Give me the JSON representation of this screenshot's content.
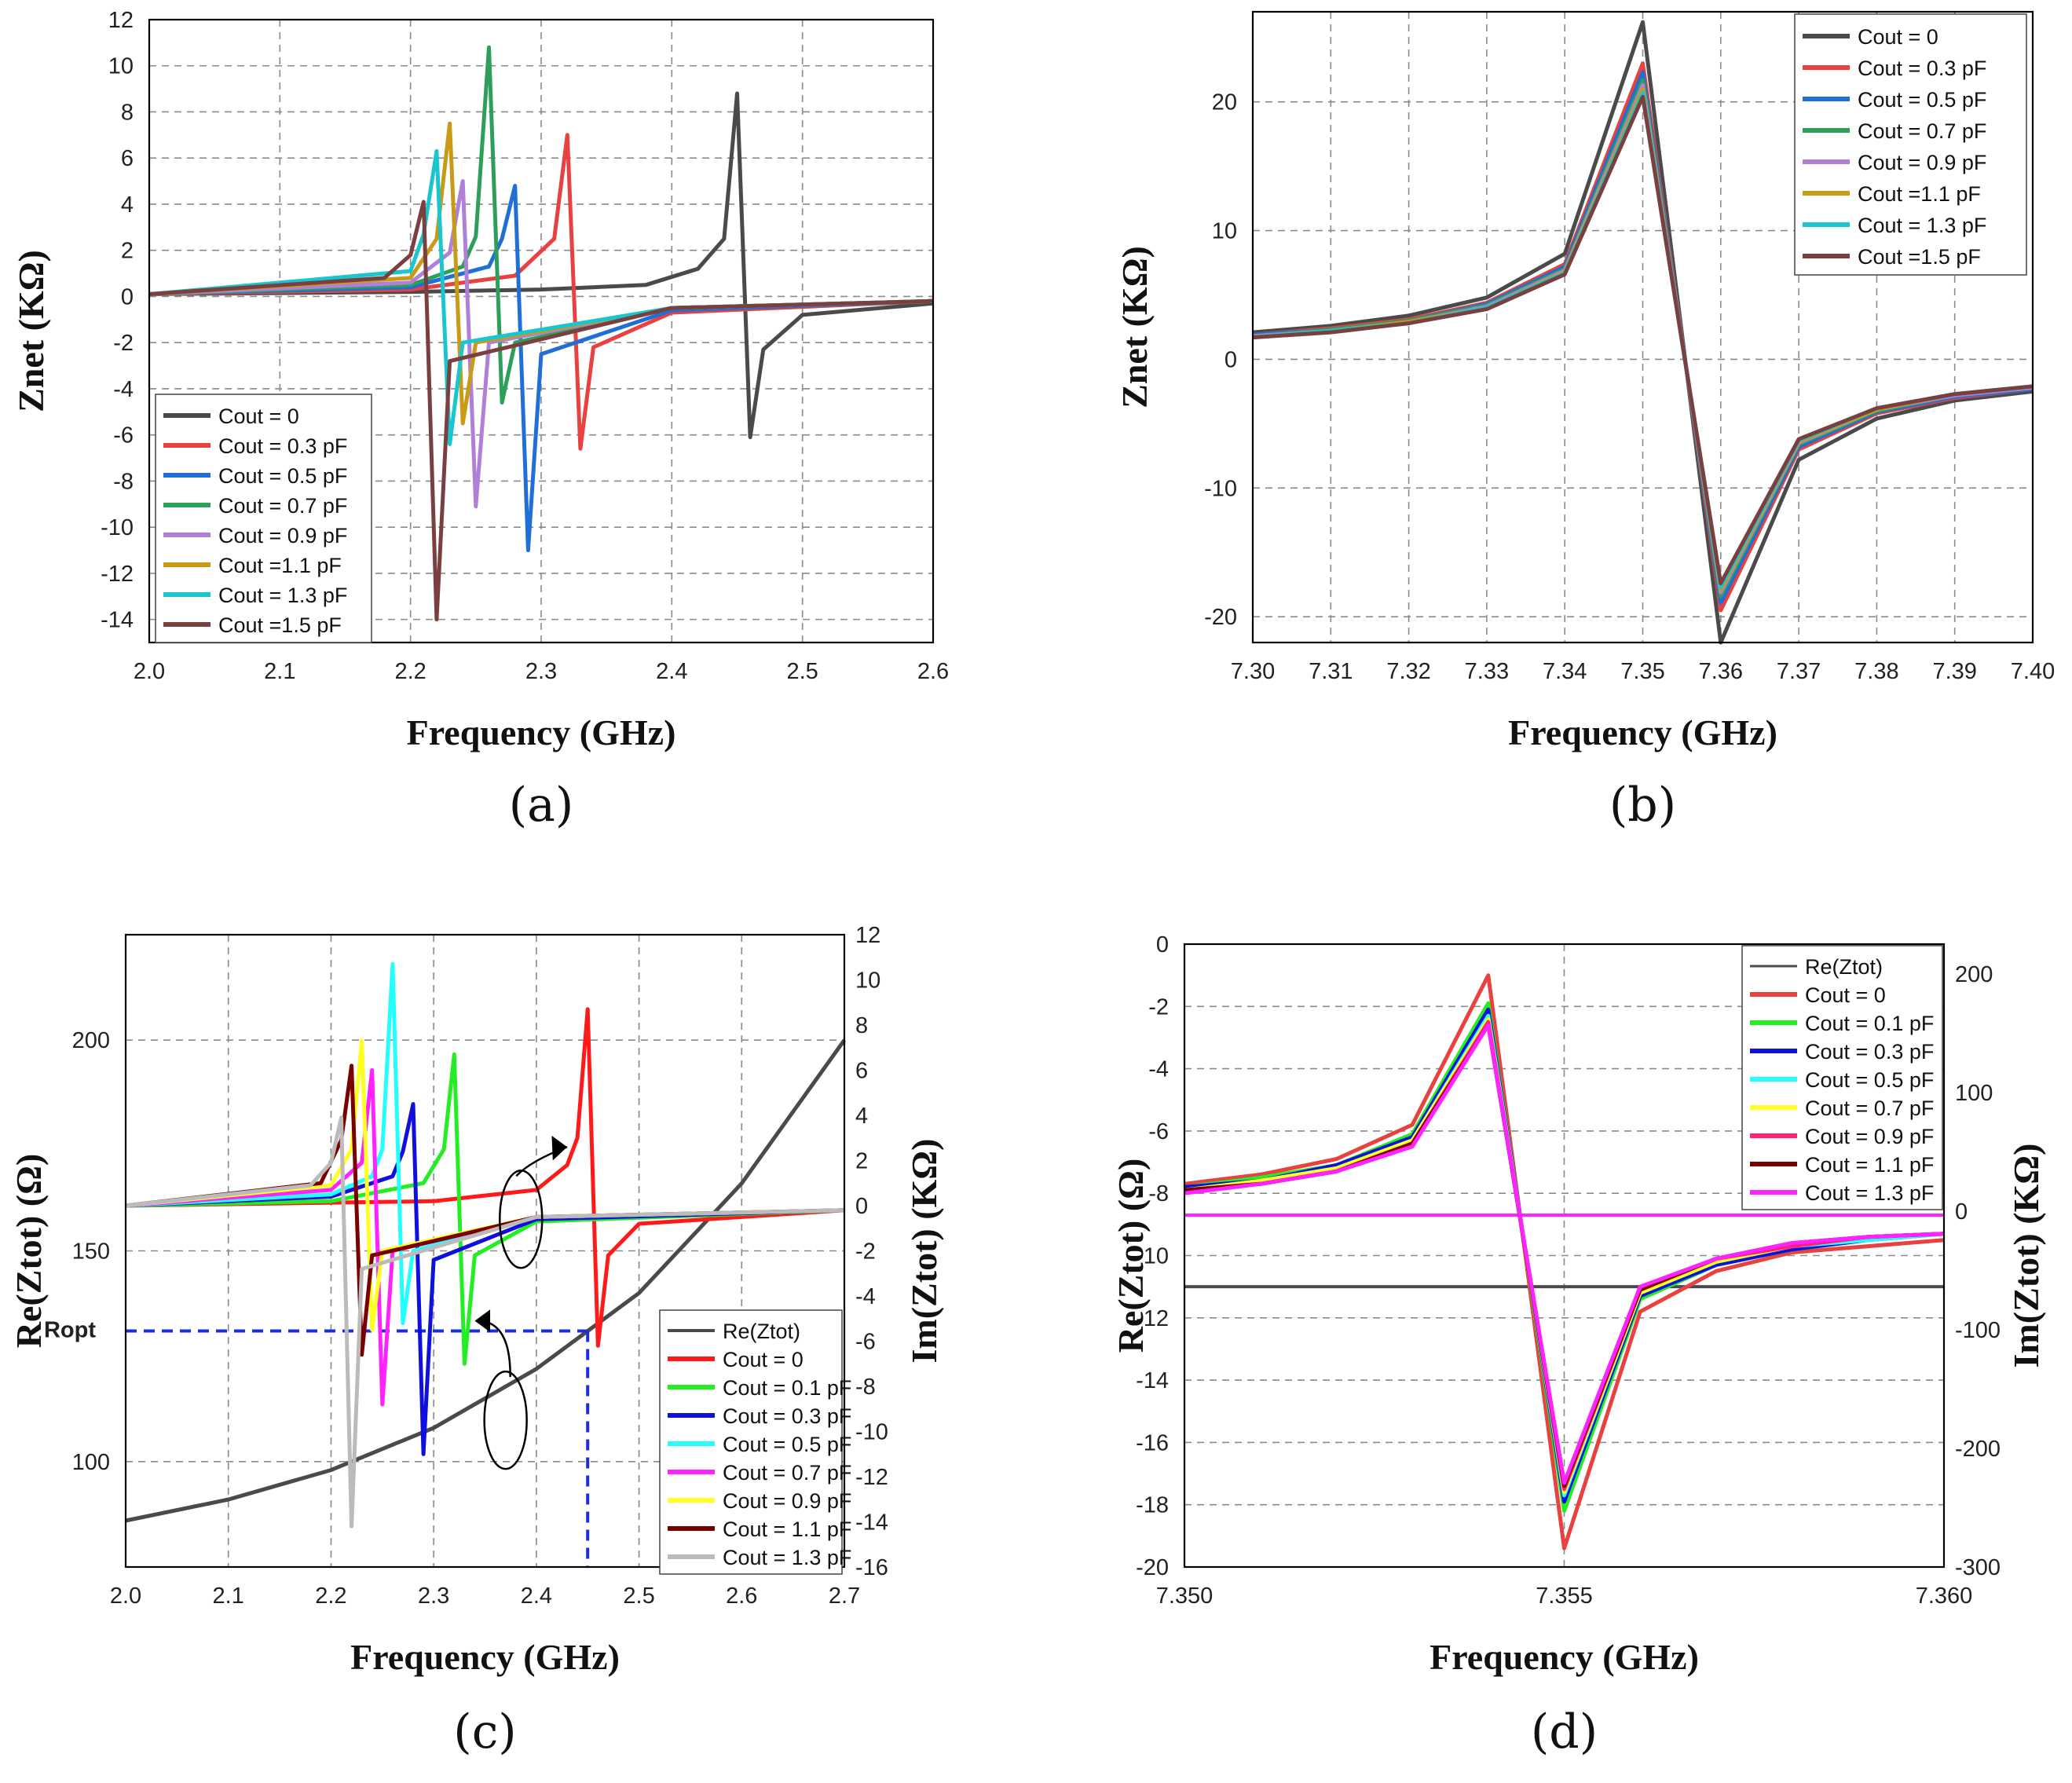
{
  "colors": {
    "a_palette": [
      "#4a4a4a",
      "#e8413f",
      "#1f6fd6",
      "#2e9e5b",
      "#b07fd8",
      "#c99a16",
      "#19c6cf",
      "#7a4040"
    ],
    "c_palette": [
      "#4a4a4a",
      "#ff1a1a",
      "#22ee22",
      "#1010dd",
      "#22ffff",
      "#ff22ff",
      "#ffff22",
      "#7a0000",
      "#bbbbbb"
    ],
    "d_palette": [
      "#4a4a4a",
      "#e8413f",
      "#22ee22",
      "#1010dd",
      "#22ffff",
      "#ffff22",
      "#ff2277",
      "#7a0000",
      "#ff22ff"
    ],
    "annotation_blue": "#1a2fd6"
  },
  "chart_data": [
    {
      "id": "a",
      "panel_label": "(a)",
      "type": "line",
      "xlabel": "Frequency (GHz)",
      "ylabel": "Znet (KΩ)",
      "xlim": [
        2.0,
        2.6
      ],
      "ylim": [
        -15,
        12
      ],
      "xticks": [
        "2.0",
        "2.1",
        "2.2",
        "2.3",
        "2.4",
        "2.5",
        "2.6"
      ],
      "yticks": [
        "12",
        "10",
        "8",
        "6",
        "4",
        "2",
        "0",
        "-2",
        "-4",
        "-6",
        "-8",
        "-10",
        "-12",
        "-14"
      ],
      "xtick_values": [
        2.0,
        2.1,
        2.2,
        2.3,
        2.4,
        2.5,
        2.6
      ],
      "ytick_values": [
        12,
        10,
        8,
        6,
        4,
        2,
        0,
        -2,
        -4,
        -6,
        -8,
        -10,
        -12,
        -14
      ],
      "legend": "bottom-left",
      "series": [
        {
          "name": "Cout = 0",
          "x": [
            2.0,
            2.2,
            2.3,
            2.38,
            2.42,
            2.44,
            2.45,
            2.46,
            2.47,
            2.5,
            2.6
          ],
          "values": [
            0.1,
            0.2,
            0.3,
            0.5,
            1.2,
            2.5,
            8.8,
            -6.1,
            -2.3,
            -0.8,
            -0.3
          ]
        },
        {
          "name": "Cout = 0.3 pF",
          "x": [
            2.0,
            2.2,
            2.28,
            2.31,
            2.32,
            2.33,
            2.34,
            2.4,
            2.6
          ],
          "values": [
            0.1,
            0.3,
            0.9,
            2.5,
            7.0,
            -6.6,
            -2.2,
            -0.7,
            -0.2
          ]
        },
        {
          "name": "Cout = 0.5 pF",
          "x": [
            2.0,
            2.2,
            2.26,
            2.27,
            2.28,
            2.29,
            2.3,
            2.4,
            2.6
          ],
          "values": [
            0.1,
            0.4,
            1.3,
            2.5,
            4.8,
            -11.0,
            -2.5,
            -0.6,
            -0.2
          ]
        },
        {
          "name": "Cout = 0.7 pF",
          "x": [
            2.0,
            2.2,
            2.24,
            2.25,
            2.26,
            2.27,
            2.28,
            2.4,
            2.6
          ],
          "values": [
            0.1,
            0.5,
            1.3,
            2.6,
            10.8,
            -4.6,
            -2.0,
            -0.5,
            -0.2
          ]
        },
        {
          "name": "Cout = 0.9 pF",
          "x": [
            2.0,
            2.2,
            2.23,
            2.24,
            2.25,
            2.26,
            2.4,
            2.6
          ],
          "values": [
            0.1,
            0.6,
            1.9,
            5.0,
            -9.1,
            -2.0,
            -0.5,
            -0.2
          ]
        },
        {
          "name": "Cout =1.1 pF",
          "x": [
            2.0,
            2.2,
            2.22,
            2.23,
            2.24,
            2.25,
            2.4,
            2.6
          ],
          "values": [
            0.1,
            0.8,
            2.5,
            7.5,
            -5.5,
            -2.0,
            -0.5,
            -0.2
          ]
        },
        {
          "name": "Cout = 1.3 pF",
          "x": [
            2.0,
            2.2,
            2.21,
            2.22,
            2.23,
            2.24,
            2.4,
            2.6
          ],
          "values": [
            0.1,
            1.1,
            2.7,
            6.3,
            -6.4,
            -2.0,
            -0.5,
            -0.2
          ]
        },
        {
          "name": "Cout =1.5 pF",
          "x": [
            2.0,
            2.18,
            2.2,
            2.21,
            2.22,
            2.23,
            2.4,
            2.6
          ],
          "values": [
            0.1,
            0.8,
            1.8,
            4.1,
            -14.0,
            -2.8,
            -0.5,
            -0.2
          ]
        }
      ]
    },
    {
      "id": "b",
      "panel_label": "(b)",
      "type": "line",
      "xlabel": "Frequency (GHz)",
      "ylabel": "Znet (KΩ)",
      "xlim": [
        7.3,
        7.4
      ],
      "ylim": [
        -22,
        27
      ],
      "xticks": [
        "7.30",
        "7.31",
        "7.32",
        "7.33",
        "7.34",
        "7.35",
        "7.36",
        "7.37",
        "7.38",
        "7.39",
        "7.40"
      ],
      "yticks": [
        "20",
        "10",
        "0",
        "-10",
        "-20"
      ],
      "xtick_values": [
        7.3,
        7.31,
        7.32,
        7.33,
        7.34,
        7.35,
        7.36,
        7.37,
        7.38,
        7.39,
        7.4
      ],
      "ytick_values": [
        20,
        10,
        0,
        -10,
        -20
      ],
      "xgrid": [
        7.31,
        7.32,
        7.33,
        7.34,
        7.35,
        7.36,
        7.37,
        7.38,
        7.39
      ],
      "ygrid": [
        20,
        10,
        0,
        -10,
        -20
      ],
      "legend": "top-right",
      "x": [
        7.3,
        7.31,
        7.32,
        7.33,
        7.34,
        7.35,
        7.36,
        7.37,
        7.38,
        7.39,
        7.4
      ],
      "series": [
        {
          "name": "Cout = 0",
          "values": [
            2.1,
            2.6,
            3.4,
            4.8,
            8.2,
            26.2,
            -22.0,
            -7.8,
            -4.6,
            -3.2,
            -2.5
          ]
        },
        {
          "name": "Cout = 0.3 pF",
          "values": [
            1.9,
            2.4,
            3.1,
            4.4,
            7.4,
            23.0,
            -19.5,
            -7.0,
            -4.2,
            -3.0,
            -2.3
          ]
        },
        {
          "name": "Cout = 0.5 pF",
          "values": [
            1.9,
            2.3,
            3.0,
            4.3,
            7.2,
            22.3,
            -18.9,
            -6.8,
            -4.1,
            -2.9,
            -2.3
          ]
        },
        {
          "name": "Cout = 0.7 pF",
          "values": [
            1.8,
            2.3,
            3.0,
            4.2,
            7.0,
            21.7,
            -18.4,
            -6.6,
            -4.0,
            -2.8,
            -2.2
          ]
        },
        {
          "name": "Cout = 0.9 pF",
          "values": [
            1.8,
            2.2,
            2.9,
            4.1,
            6.9,
            21.3,
            -18.1,
            -6.5,
            -3.9,
            -2.8,
            -2.2
          ]
        },
        {
          "name": "Cout =1.1 pF",
          "values": [
            1.7,
            2.2,
            2.9,
            4.0,
            6.8,
            21.0,
            -17.9,
            -6.4,
            -3.9,
            -2.7,
            -2.1
          ]
        },
        {
          "name": "Cout = 1.3 pF",
          "values": [
            1.7,
            2.2,
            2.8,
            4.0,
            6.7,
            20.7,
            -17.7,
            -6.3,
            -3.8,
            -2.7,
            -2.1
          ]
        },
        {
          "name": "Cout =1.5 pF",
          "values": [
            1.7,
            2.1,
            2.8,
            3.9,
            6.6,
            20.4,
            -17.4,
            -6.2,
            -3.8,
            -2.7,
            -2.1
          ]
        }
      ]
    },
    {
      "id": "c",
      "panel_label": "(c)",
      "type": "line",
      "xlabel": "Frequency (GHz)",
      "ylabel_left": "Re(Ztot) (Ω)",
      "ylabel_right": "Im(Ztot) (KΩ)",
      "xlim": [
        2.0,
        2.7
      ],
      "ylim_left": [
        75,
        225
      ],
      "ylim_right": [
        -16,
        12
      ],
      "xticks": [
        "2.0",
        "2.1",
        "2.2",
        "2.3",
        "2.4",
        "2.5",
        "2.6",
        "2.7"
      ],
      "xtick_values": [
        2.0,
        2.1,
        2.2,
        2.3,
        2.4,
        2.5,
        2.6,
        2.7
      ],
      "yticks_left": [
        "200",
        "150",
        "100"
      ],
      "ytick_left_values": [
        200,
        150,
        100
      ],
      "yticks_right": [
        "12",
        "10",
        "8",
        "6",
        "4",
        "2",
        "0",
        "-2",
        "-4",
        "-6",
        "-8",
        "-10",
        "-12",
        "-14",
        "-16"
      ],
      "ytick_right_values": [
        12,
        10,
        8,
        6,
        4,
        2,
        0,
        -2,
        -4,
        -6,
        -8,
        -10,
        -12,
        -14,
        -16
      ],
      "ropt_label": "Ropt",
      "ropt_value": 131,
      "ropt_freq": 2.45,
      "legend": "bottom-right",
      "re_series": {
        "name": "Re(Ztot)",
        "x": [
          2.0,
          2.1,
          2.2,
          2.3,
          2.4,
          2.5,
          2.6,
          2.7
        ],
        "values": [
          86,
          91,
          98,
          108,
          122,
          140,
          166,
          200
        ]
      },
      "series": [
        {
          "name": "Cout = 0",
          "x": [
            2.0,
            2.3,
            2.4,
            2.43,
            2.44,
            2.45,
            2.46,
            2.47,
            2.5,
            2.7
          ],
          "values": [
            0.0,
            0.2,
            0.7,
            1.8,
            3.0,
            8.7,
            -6.2,
            -2.2,
            -0.8,
            -0.2
          ]
        },
        {
          "name": "Cout = 0.1 pF",
          "x": [
            2.0,
            2.2,
            2.29,
            2.31,
            2.32,
            2.33,
            2.34,
            2.4,
            2.7
          ],
          "values": [
            0.0,
            0.2,
            1.0,
            2.5,
            6.7,
            -7.0,
            -2.2,
            -0.7,
            -0.2
          ]
        },
        {
          "name": "Cout = 0.3 pF",
          "x": [
            2.0,
            2.2,
            2.26,
            2.27,
            2.28,
            2.29,
            2.3,
            2.4,
            2.7
          ],
          "values": [
            0.0,
            0.4,
            1.3,
            2.4,
            4.5,
            -11.0,
            -2.4,
            -0.6,
            -0.2
          ]
        },
        {
          "name": "Cout = 0.5 pF",
          "x": [
            2.0,
            2.2,
            2.24,
            2.25,
            2.26,
            2.27,
            2.28,
            2.4,
            2.7
          ],
          "values": [
            0.0,
            0.5,
            1.3,
            2.5,
            10.7,
            -5.2,
            -2.0,
            -0.5,
            -0.2
          ]
        },
        {
          "name": "Cout = 0.7 pF",
          "x": [
            2.0,
            2.2,
            2.23,
            2.24,
            2.25,
            2.26,
            2.4,
            2.7
          ],
          "values": [
            0.0,
            0.7,
            1.9,
            6.0,
            -8.8,
            -2.0,
            -0.5,
            -0.2
          ]
        },
        {
          "name": "Cout = 0.9 pF",
          "x": [
            2.0,
            2.2,
            2.22,
            2.23,
            2.24,
            2.25,
            2.4,
            2.7
          ],
          "values": [
            0.0,
            0.9,
            2.5,
            7.3,
            -5.5,
            -2.0,
            -0.5,
            -0.2
          ]
        },
        {
          "name": "Cout = 1.1 pF",
          "x": [
            2.0,
            2.19,
            2.21,
            2.22,
            2.23,
            2.24,
            2.4,
            2.7
          ],
          "values": [
            0.0,
            1.0,
            2.9,
            6.2,
            -6.6,
            -2.2,
            -0.5,
            -0.2
          ]
        },
        {
          "name": "Cout = 1.3 pF",
          "x": [
            2.0,
            2.18,
            2.2,
            2.21,
            2.22,
            2.23,
            2.4,
            2.7
          ],
          "values": [
            0.0,
            0.9,
            1.9,
            3.9,
            -14.2,
            -2.8,
            -0.5,
            -0.2
          ]
        }
      ]
    },
    {
      "id": "d",
      "panel_label": "(d)",
      "type": "line",
      "xlabel": "Frequency (GHz)",
      "ylabel_left": "Re(Ztot) (Ω)",
      "ylabel_right": "Im(Ztot) (KΩ)",
      "xlim": [
        7.35,
        7.36
      ],
      "ylim_left": [
        -20,
        0
      ],
      "ylim_right": [
        -300,
        225
      ],
      "xticks": [
        "7.350",
        "7.355",
        "7.360"
      ],
      "xtick_values": [
        7.35,
        7.355,
        7.36
      ],
      "yticks_left": [
        "0",
        "-2",
        "-4",
        "-6",
        "-8",
        "-10",
        "-12",
        "-14",
        "-16",
        "-18",
        "-20"
      ],
      "ytick_left_values": [
        0,
        -2,
        -4,
        -6,
        -8,
        -10,
        -12,
        -14,
        -16,
        -18,
        -20
      ],
      "yticks_right": [
        "200",
        "100",
        "0",
        "-100",
        "-200",
        "-300"
      ],
      "ytick_right_values": [
        200,
        100,
        0,
        -100,
        -200,
        -300
      ],
      "legend": "top-right",
      "re_value": -11.0,
      "flat_value": -8.7,
      "x": [
        7.35,
        7.351,
        7.352,
        7.353,
        7.354,
        7.355,
        7.356,
        7.357,
        7.358,
        7.359,
        7.36
      ],
      "series": [
        {
          "name": "Re(Ztot)"
        },
        {
          "name": "Cout = 0",
          "values": [
            -7.7,
            -7.4,
            -6.9,
            -5.8,
            -1.0,
            -19.4,
            -11.8,
            -10.5,
            -9.9,
            -9.7,
            -9.5
          ]
        },
        {
          "name": "Cout = 0.1 pF",
          "values": [
            -7.8,
            -7.5,
            -7.1,
            -6.1,
            -1.9,
            -18.2,
            -11.4,
            -10.3,
            -9.8,
            -9.5,
            -9.3
          ]
        },
        {
          "name": "Cout = 0.3 pF",
          "values": [
            -7.8,
            -7.6,
            -7.1,
            -6.2,
            -2.1,
            -17.9,
            -11.3,
            -10.3,
            -9.8,
            -9.5,
            -9.3
          ]
        },
        {
          "name": "Cout = 0.5 pF",
          "values": [
            -7.9,
            -7.6,
            -7.2,
            -6.3,
            -2.3,
            -17.7,
            -11.2,
            -10.2,
            -9.7,
            -9.5,
            -9.3
          ]
        },
        {
          "name": "Cout = 0.7 pF",
          "values": [
            -7.9,
            -7.6,
            -7.2,
            -6.3,
            -2.4,
            -17.6,
            -11.2,
            -10.2,
            -9.7,
            -9.4,
            -9.3
          ]
        },
        {
          "name": "Cout = 0.9 pF",
          "values": [
            -7.9,
            -7.7,
            -7.3,
            -6.4,
            -2.5,
            -17.5,
            -11.1,
            -10.1,
            -9.7,
            -9.4,
            -9.3
          ]
        },
        {
          "name": "Cout = 1.1 pF",
          "values": [
            -7.9,
            -7.7,
            -7.3,
            -6.4,
            -2.6,
            -17.4,
            -11.1,
            -10.1,
            -9.6,
            -9.4,
            -9.3
          ]
        },
        {
          "name": "Cout = 1.3 pF",
          "values": [
            -8.0,
            -7.7,
            -7.3,
            -6.5,
            -2.6,
            -17.3,
            -11.0,
            -10.1,
            -9.6,
            -9.4,
            -9.3
          ]
        }
      ]
    }
  ]
}
